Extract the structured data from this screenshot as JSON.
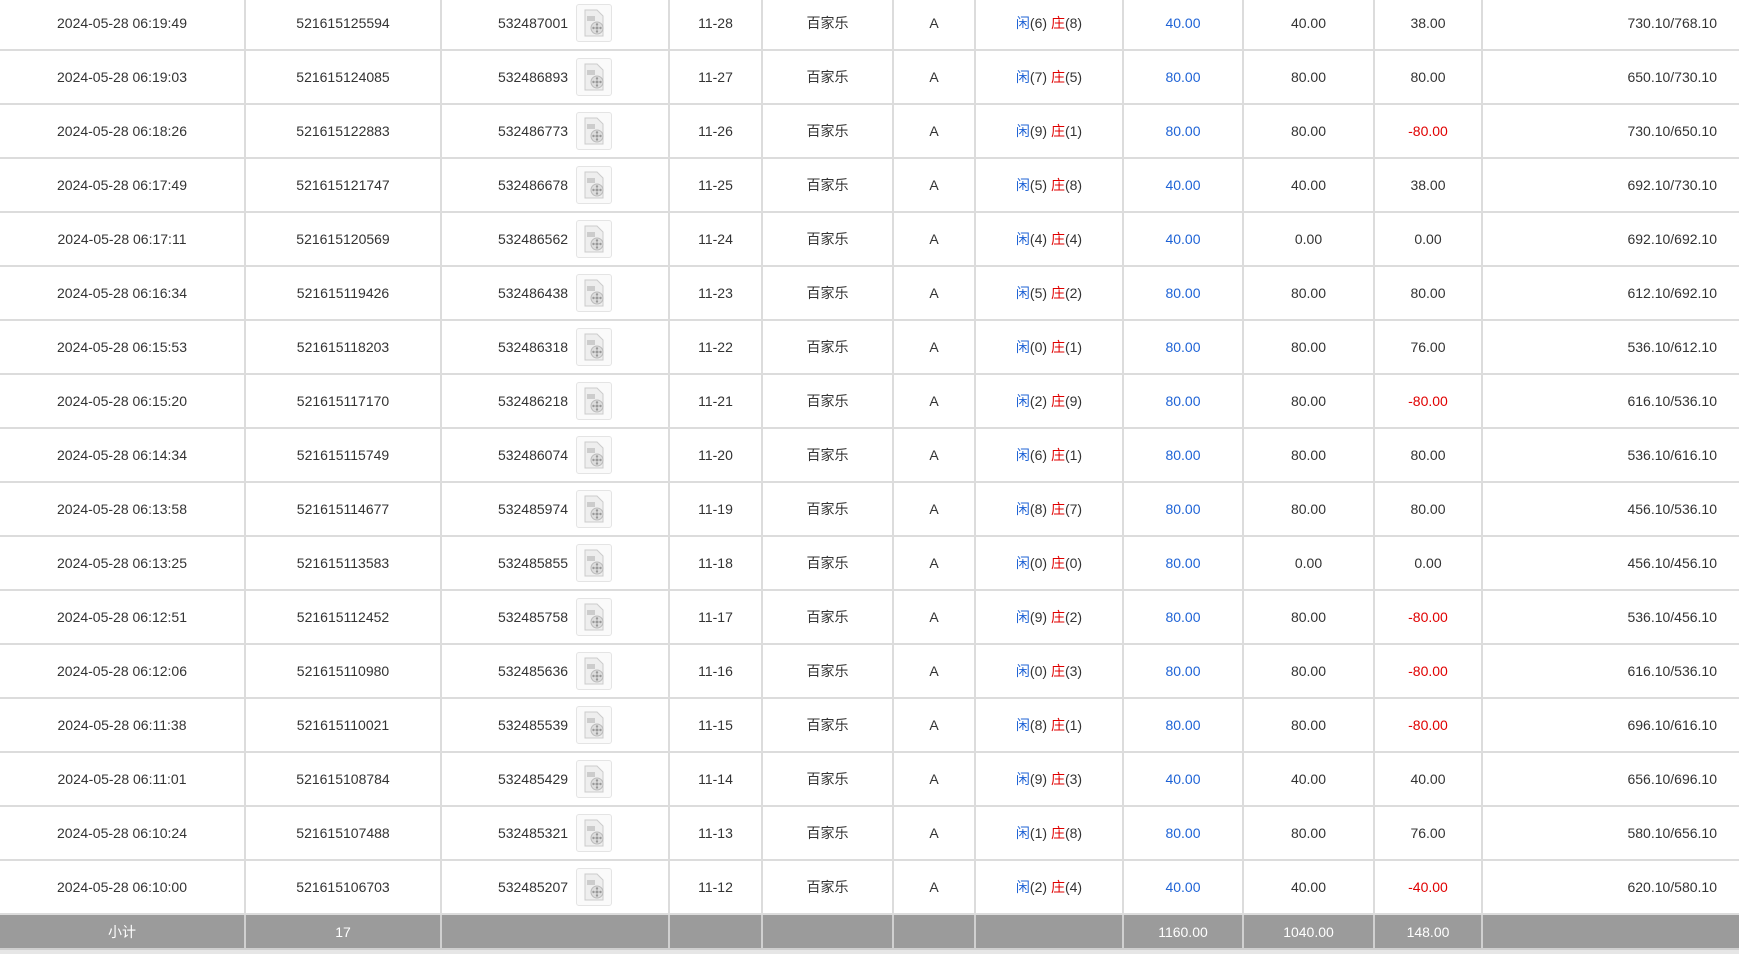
{
  "colors": {
    "blue": "#1f63d6",
    "red": "#e00000",
    "subtotal_bg": "#9b9b9b"
  },
  "rows": [
    {
      "time": "2024-05-28 06:19:49",
      "bet_id": "521615125594",
      "round_id": "532487001",
      "shoe": "11-28",
      "game": "百家乐",
      "table": "A",
      "player_label": "闲",
      "player": "(6)",
      "banker_label": "庄",
      "banker": "(8)",
      "bet": "40.00",
      "valid": "40.00",
      "win": "38.00",
      "win_neg": false,
      "balance": "730.10/768.10"
    },
    {
      "time": "2024-05-28 06:19:03",
      "bet_id": "521615124085",
      "round_id": "532486893",
      "shoe": "11-27",
      "game": "百家乐",
      "table": "A",
      "player_label": "闲",
      "player": "(7)",
      "banker_label": "庄",
      "banker": "(5)",
      "bet": "80.00",
      "valid": "80.00",
      "win": "80.00",
      "win_neg": false,
      "balance": "650.10/730.10"
    },
    {
      "time": "2024-05-28 06:18:26",
      "bet_id": "521615122883",
      "round_id": "532486773",
      "shoe": "11-26",
      "game": "百家乐",
      "table": "A",
      "player_label": "闲",
      "player": "(9)",
      "banker_label": "庄",
      "banker": "(1)",
      "bet": "80.00",
      "valid": "80.00",
      "win": "-80.00",
      "win_neg": true,
      "balance": "730.10/650.10"
    },
    {
      "time": "2024-05-28 06:17:49",
      "bet_id": "521615121747",
      "round_id": "532486678",
      "shoe": "11-25",
      "game": "百家乐",
      "table": "A",
      "player_label": "闲",
      "player": "(5)",
      "banker_label": "庄",
      "banker": "(8)",
      "bet": "40.00",
      "valid": "40.00",
      "win": "38.00",
      "win_neg": false,
      "balance": "692.10/730.10"
    },
    {
      "time": "2024-05-28 06:17:11",
      "bet_id": "521615120569",
      "round_id": "532486562",
      "shoe": "11-24",
      "game": "百家乐",
      "table": "A",
      "player_label": "闲",
      "player": "(4)",
      "banker_label": "庄",
      "banker": "(4)",
      "bet": "40.00",
      "valid": "0.00",
      "win": "0.00",
      "win_neg": false,
      "balance": "692.10/692.10"
    },
    {
      "time": "2024-05-28 06:16:34",
      "bet_id": "521615119426",
      "round_id": "532486438",
      "shoe": "11-23",
      "game": "百家乐",
      "table": "A",
      "player_label": "闲",
      "player": "(5)",
      "banker_label": "庄",
      "banker": "(2)",
      "bet": "80.00",
      "valid": "80.00",
      "win": "80.00",
      "win_neg": false,
      "balance": "612.10/692.10"
    },
    {
      "time": "2024-05-28 06:15:53",
      "bet_id": "521615118203",
      "round_id": "532486318",
      "shoe": "11-22",
      "game": "百家乐",
      "table": "A",
      "player_label": "闲",
      "player": "(0)",
      "banker_label": "庄",
      "banker": "(1)",
      "bet": "80.00",
      "valid": "80.00",
      "win": "76.00",
      "win_neg": false,
      "balance": "536.10/612.10"
    },
    {
      "time": "2024-05-28 06:15:20",
      "bet_id": "521615117170",
      "round_id": "532486218",
      "shoe": "11-21",
      "game": "百家乐",
      "table": "A",
      "player_label": "闲",
      "player": "(2)",
      "banker_label": "庄",
      "banker": "(9)",
      "bet": "80.00",
      "valid": "80.00",
      "win": "-80.00",
      "win_neg": true,
      "balance": "616.10/536.10"
    },
    {
      "time": "2024-05-28 06:14:34",
      "bet_id": "521615115749",
      "round_id": "532486074",
      "shoe": "11-20",
      "game": "百家乐",
      "table": "A",
      "player_label": "闲",
      "player": "(6)",
      "banker_label": "庄",
      "banker": "(1)",
      "bet": "80.00",
      "valid": "80.00",
      "win": "80.00",
      "win_neg": false,
      "balance": "536.10/616.10"
    },
    {
      "time": "2024-05-28 06:13:58",
      "bet_id": "521615114677",
      "round_id": "532485974",
      "shoe": "11-19",
      "game": "百家乐",
      "table": "A",
      "player_label": "闲",
      "player": "(8)",
      "banker_label": "庄",
      "banker": "(7)",
      "bet": "80.00",
      "valid": "80.00",
      "win": "80.00",
      "win_neg": false,
      "balance": "456.10/536.10"
    },
    {
      "time": "2024-05-28 06:13:25",
      "bet_id": "521615113583",
      "round_id": "532485855",
      "shoe": "11-18",
      "game": "百家乐",
      "table": "A",
      "player_label": "闲",
      "player": "(0)",
      "banker_label": "庄",
      "banker": "(0)",
      "bet": "80.00",
      "valid": "0.00",
      "win": "0.00",
      "win_neg": false,
      "balance": "456.10/456.10"
    },
    {
      "time": "2024-05-28 06:12:51",
      "bet_id": "521615112452",
      "round_id": "532485758",
      "shoe": "11-17",
      "game": "百家乐",
      "table": "A",
      "player_label": "闲",
      "player": "(9)",
      "banker_label": "庄",
      "banker": "(2)",
      "bet": "80.00",
      "valid": "80.00",
      "win": "-80.00",
      "win_neg": true,
      "balance": "536.10/456.10"
    },
    {
      "time": "2024-05-28 06:12:06",
      "bet_id": "521615110980",
      "round_id": "532485636",
      "shoe": "11-16",
      "game": "百家乐",
      "table": "A",
      "player_label": "闲",
      "player": "(0)",
      "banker_label": "庄",
      "banker": "(3)",
      "bet": "80.00",
      "valid": "80.00",
      "win": "-80.00",
      "win_neg": true,
      "balance": "616.10/536.10"
    },
    {
      "time": "2024-05-28 06:11:38",
      "bet_id": "521615110021",
      "round_id": "532485539",
      "shoe": "11-15",
      "game": "百家乐",
      "table": "A",
      "player_label": "闲",
      "player": "(8)",
      "banker_label": "庄",
      "banker": "(1)",
      "bet": "80.00",
      "valid": "80.00",
      "win": "-80.00",
      "win_neg": true,
      "balance": "696.10/616.10"
    },
    {
      "time": "2024-05-28 06:11:01",
      "bet_id": "521615108784",
      "round_id": "532485429",
      "shoe": "11-14",
      "game": "百家乐",
      "table": "A",
      "player_label": "闲",
      "player": "(9)",
      "banker_label": "庄",
      "banker": "(3)",
      "bet": "40.00",
      "valid": "40.00",
      "win": "40.00",
      "win_neg": false,
      "balance": "656.10/696.10"
    },
    {
      "time": "2024-05-28 06:10:24",
      "bet_id": "521615107488",
      "round_id": "532485321",
      "shoe": "11-13",
      "game": "百家乐",
      "table": "A",
      "player_label": "闲",
      "player": "(1)",
      "banker_label": "庄",
      "banker": "(8)",
      "bet": "80.00",
      "valid": "80.00",
      "win": "76.00",
      "win_neg": false,
      "balance": "580.10/656.10"
    },
    {
      "time": "2024-05-28 06:10:00",
      "bet_id": "521615106703",
      "round_id": "532485207",
      "shoe": "11-12",
      "game": "百家乐",
      "table": "A",
      "player_label": "闲",
      "player": "(2)",
      "banker_label": "庄",
      "banker": "(4)",
      "bet": "40.00",
      "valid": "40.00",
      "win": "-40.00",
      "win_neg": true,
      "balance": "620.10/580.10"
    }
  ],
  "subtotal": {
    "label": "小计",
    "count": "17",
    "bet": "1160.00",
    "valid": "1040.00",
    "win": "148.00"
  }
}
